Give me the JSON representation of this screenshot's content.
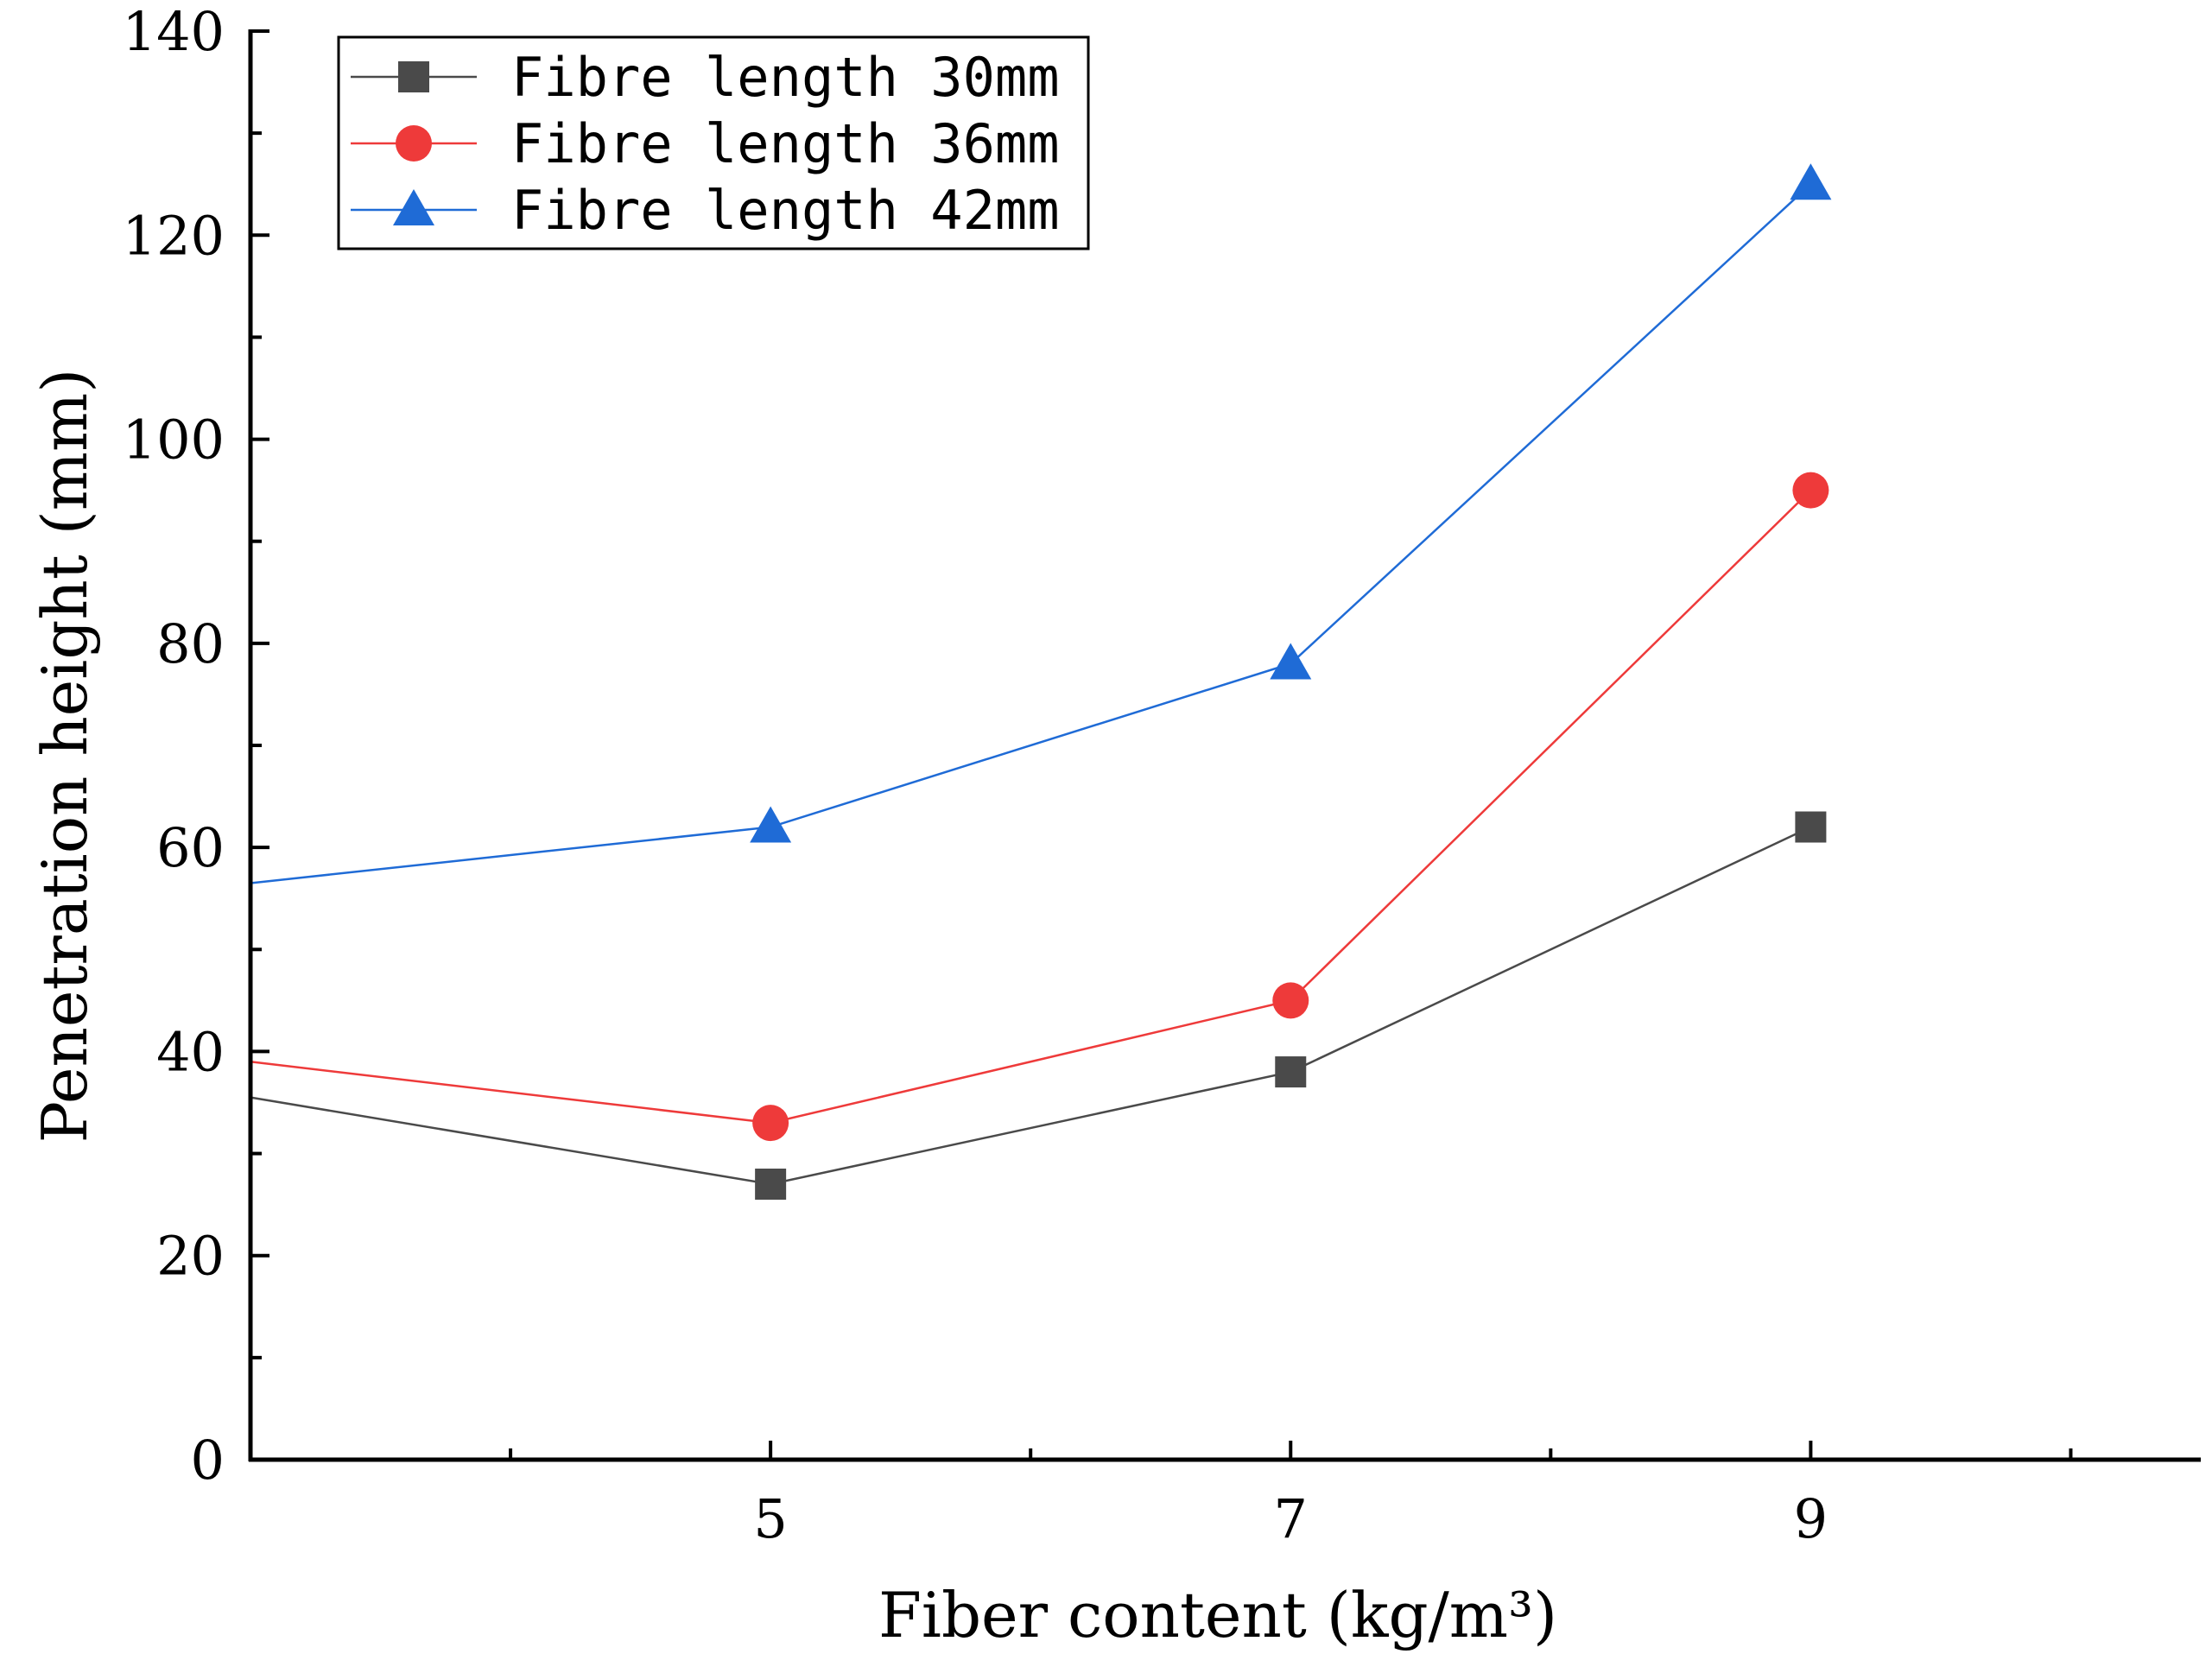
{
  "chart_data": {
    "type": "line",
    "xlabel": "Fiber content (kg/m³)",
    "ylabel": "Penetration height (mm)",
    "xlim": [
      3,
      10.5
    ],
    "ylim": [
      0,
      140
    ],
    "xticks": [
      5,
      7,
      9
    ],
    "yticks": [
      0,
      20,
      40,
      60,
      80,
      100,
      120,
      140
    ],
    "grid": false,
    "legend_position": "top-left",
    "series": [
      {
        "name": "Fibre length 30mm",
        "color": "#4a4a4a",
        "marker": "square",
        "x": [
          3,
          5,
          7,
          9
        ],
        "y": [
          35.5,
          27,
          38,
          62
        ]
      },
      {
        "name": "Fibre length 36mm",
        "color": "#ee3a3a",
        "marker": "circle",
        "x": [
          3,
          5,
          7,
          9
        ],
        "y": [
          39,
          33,
          45,
          95
        ]
      },
      {
        "name": "Fibre length 42mm",
        "color": "#1f6bd6",
        "marker": "triangle",
        "x": [
          3,
          5,
          7,
          9
        ],
        "y": [
          56.5,
          62,
          78,
          125
        ]
      }
    ]
  }
}
